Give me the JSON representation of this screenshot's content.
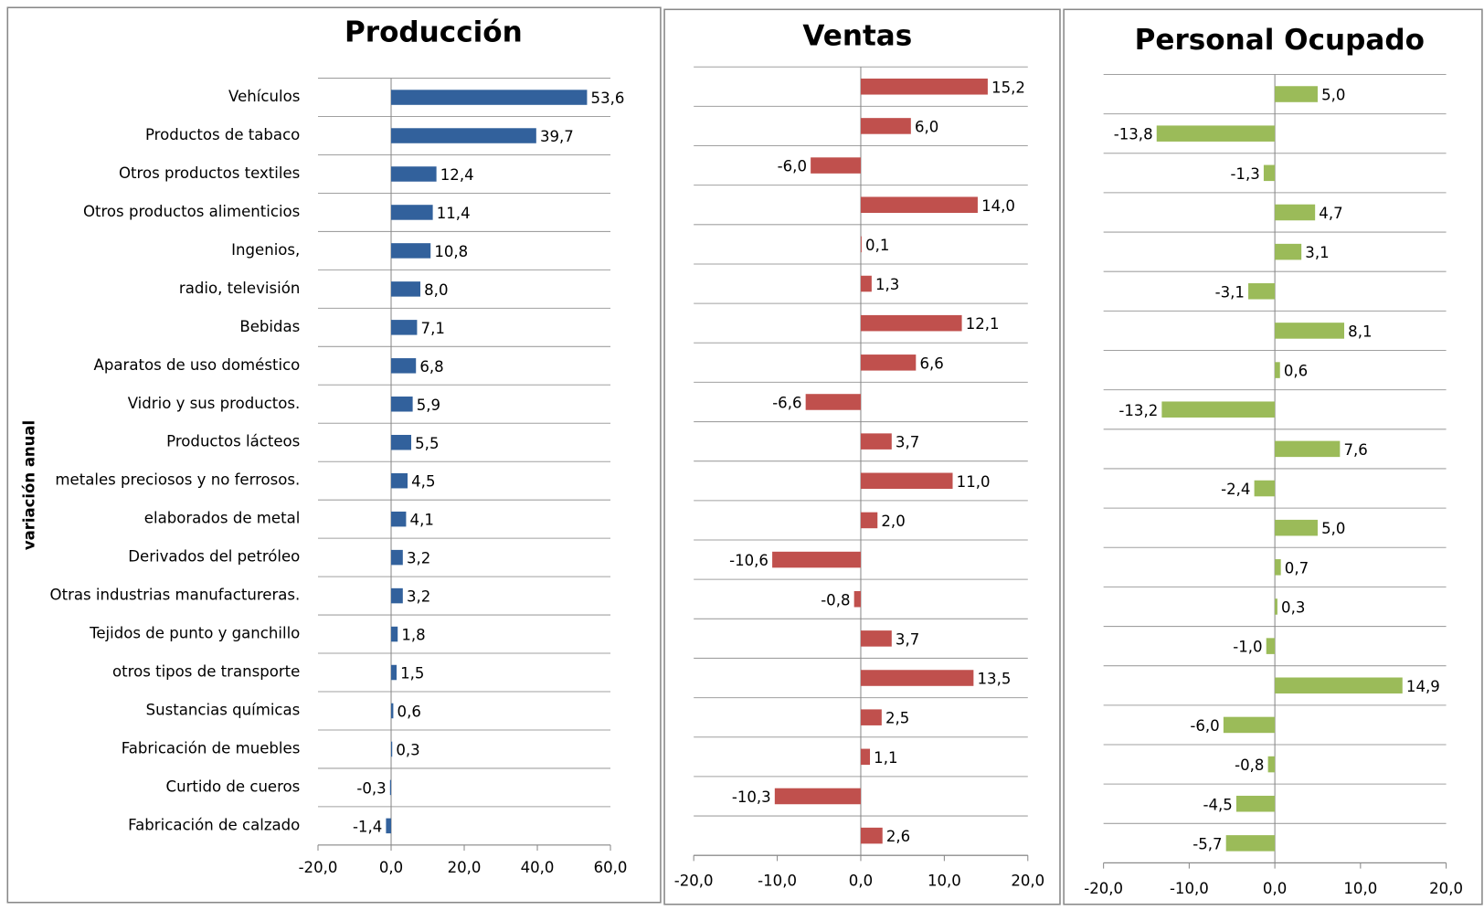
{
  "chart_data": [
    {
      "type": "bar",
      "horizontal": true,
      "title": "Producción",
      "y_label": "variación anual",
      "color": "#32619c",
      "categories": [
        "Vehículos",
        "Productos de tabaco",
        "Otros productos textiles",
        "Otros productos alimenticios",
        "Ingenios,",
        "radio, televisión",
        "Bebidas",
        "Aparatos de uso doméstico",
        "Vidrio y sus productos.",
        "Productos lácteos",
        "metales preciosos y no ferrosos.",
        "elaborados de metal",
        "Derivados del petróleo",
        "Otras industrias manufactureras.",
        "Tejidos de punto y ganchillo",
        "otros tipos de transporte",
        "Sustancias químicas",
        "Fabricación de muebles",
        "Curtido de cueros",
        "Fabricación de calzado"
      ],
      "values": [
        53.6,
        39.7,
        12.4,
        11.4,
        10.8,
        8.0,
        7.1,
        6.8,
        5.9,
        5.5,
        4.5,
        4.1,
        3.2,
        3.2,
        1.8,
        1.5,
        0.6,
        0.3,
        -0.3,
        -1.4
      ],
      "value_labels": [
        "53,6",
        "39,7",
        "12,4",
        "11,4",
        "10,8",
        "8,0",
        "7,1",
        "6,8",
        "5,9",
        "5,5",
        "4,5",
        "4,1",
        "3,2",
        "3,2",
        "1,8",
        "1,5",
        "0,6",
        "0,3",
        "-0,3",
        "-1,4"
      ],
      "xlim": [
        -20,
        60
      ],
      "xticks": [
        {
          "value": -20,
          "label": "-20,0"
        },
        {
          "value": 0,
          "label": "0,0"
        },
        {
          "value": 20,
          "label": "20,0"
        },
        {
          "value": 40,
          "label": "40,0"
        },
        {
          "value": 60,
          "label": "60,0"
        }
      ]
    },
    {
      "type": "bar",
      "horizontal": true,
      "title": "Ventas",
      "color": "#c0504d",
      "values": [
        15.2,
        6.0,
        -6.0,
        14.0,
        0.1,
        1.3,
        12.1,
        6.6,
        -6.6,
        3.7,
        11.0,
        2.0,
        -10.6,
        -0.8,
        3.7,
        13.5,
        2.5,
        1.1,
        -10.3,
        2.6
      ],
      "value_labels": [
        "15,2",
        "6,0",
        "-6,0",
        "14,0",
        "0,1",
        "1,3",
        "12,1",
        "6,6",
        "-6,6",
        "3,7",
        "11,0",
        "2,0",
        "-10,6",
        "-0,8",
        "3,7",
        "13,5",
        "2,5",
        "1,1",
        "-10,3",
        "2,6"
      ],
      "xlim": [
        -20,
        20
      ],
      "xticks": [
        {
          "value": -20,
          "label": "-20,0"
        },
        {
          "value": -10,
          "label": "-10,0"
        },
        {
          "value": 0,
          "label": "0,0"
        },
        {
          "value": 10,
          "label": "10,0"
        },
        {
          "value": 20,
          "label": "20,0"
        }
      ]
    },
    {
      "type": "bar",
      "horizontal": true,
      "title": "Personal Ocupado",
      "color": "#9bbb59",
      "values": [
        5.0,
        -13.8,
        -1.3,
        4.7,
        3.1,
        -3.1,
        8.1,
        0.6,
        -13.2,
        7.6,
        -2.4,
        5.0,
        0.7,
        0.3,
        -1.0,
        14.9,
        -6.0,
        -0.8,
        -4.5,
        -5.7
      ],
      "value_labels": [
        "5,0",
        "-13,8",
        "-1,3",
        "4,7",
        "3,1",
        "-3,1",
        "8,1",
        "0,6",
        "-13,2",
        "7,6",
        "-2,4",
        "5,0",
        "0,7",
        "0,3",
        "-1,0",
        "14,9",
        "-6,0",
        "-0,8",
        "-4,5",
        "-5,7"
      ],
      "xlim": [
        -20,
        20
      ],
      "xticks": [
        {
          "value": -20,
          "label": "-20,0"
        },
        {
          "value": -10,
          "label": "-10,0"
        },
        {
          "value": 0,
          "label": "0,0"
        },
        {
          "value": 10,
          "label": "10,0"
        },
        {
          "value": 20,
          "label": "20,0"
        }
      ]
    }
  ]
}
